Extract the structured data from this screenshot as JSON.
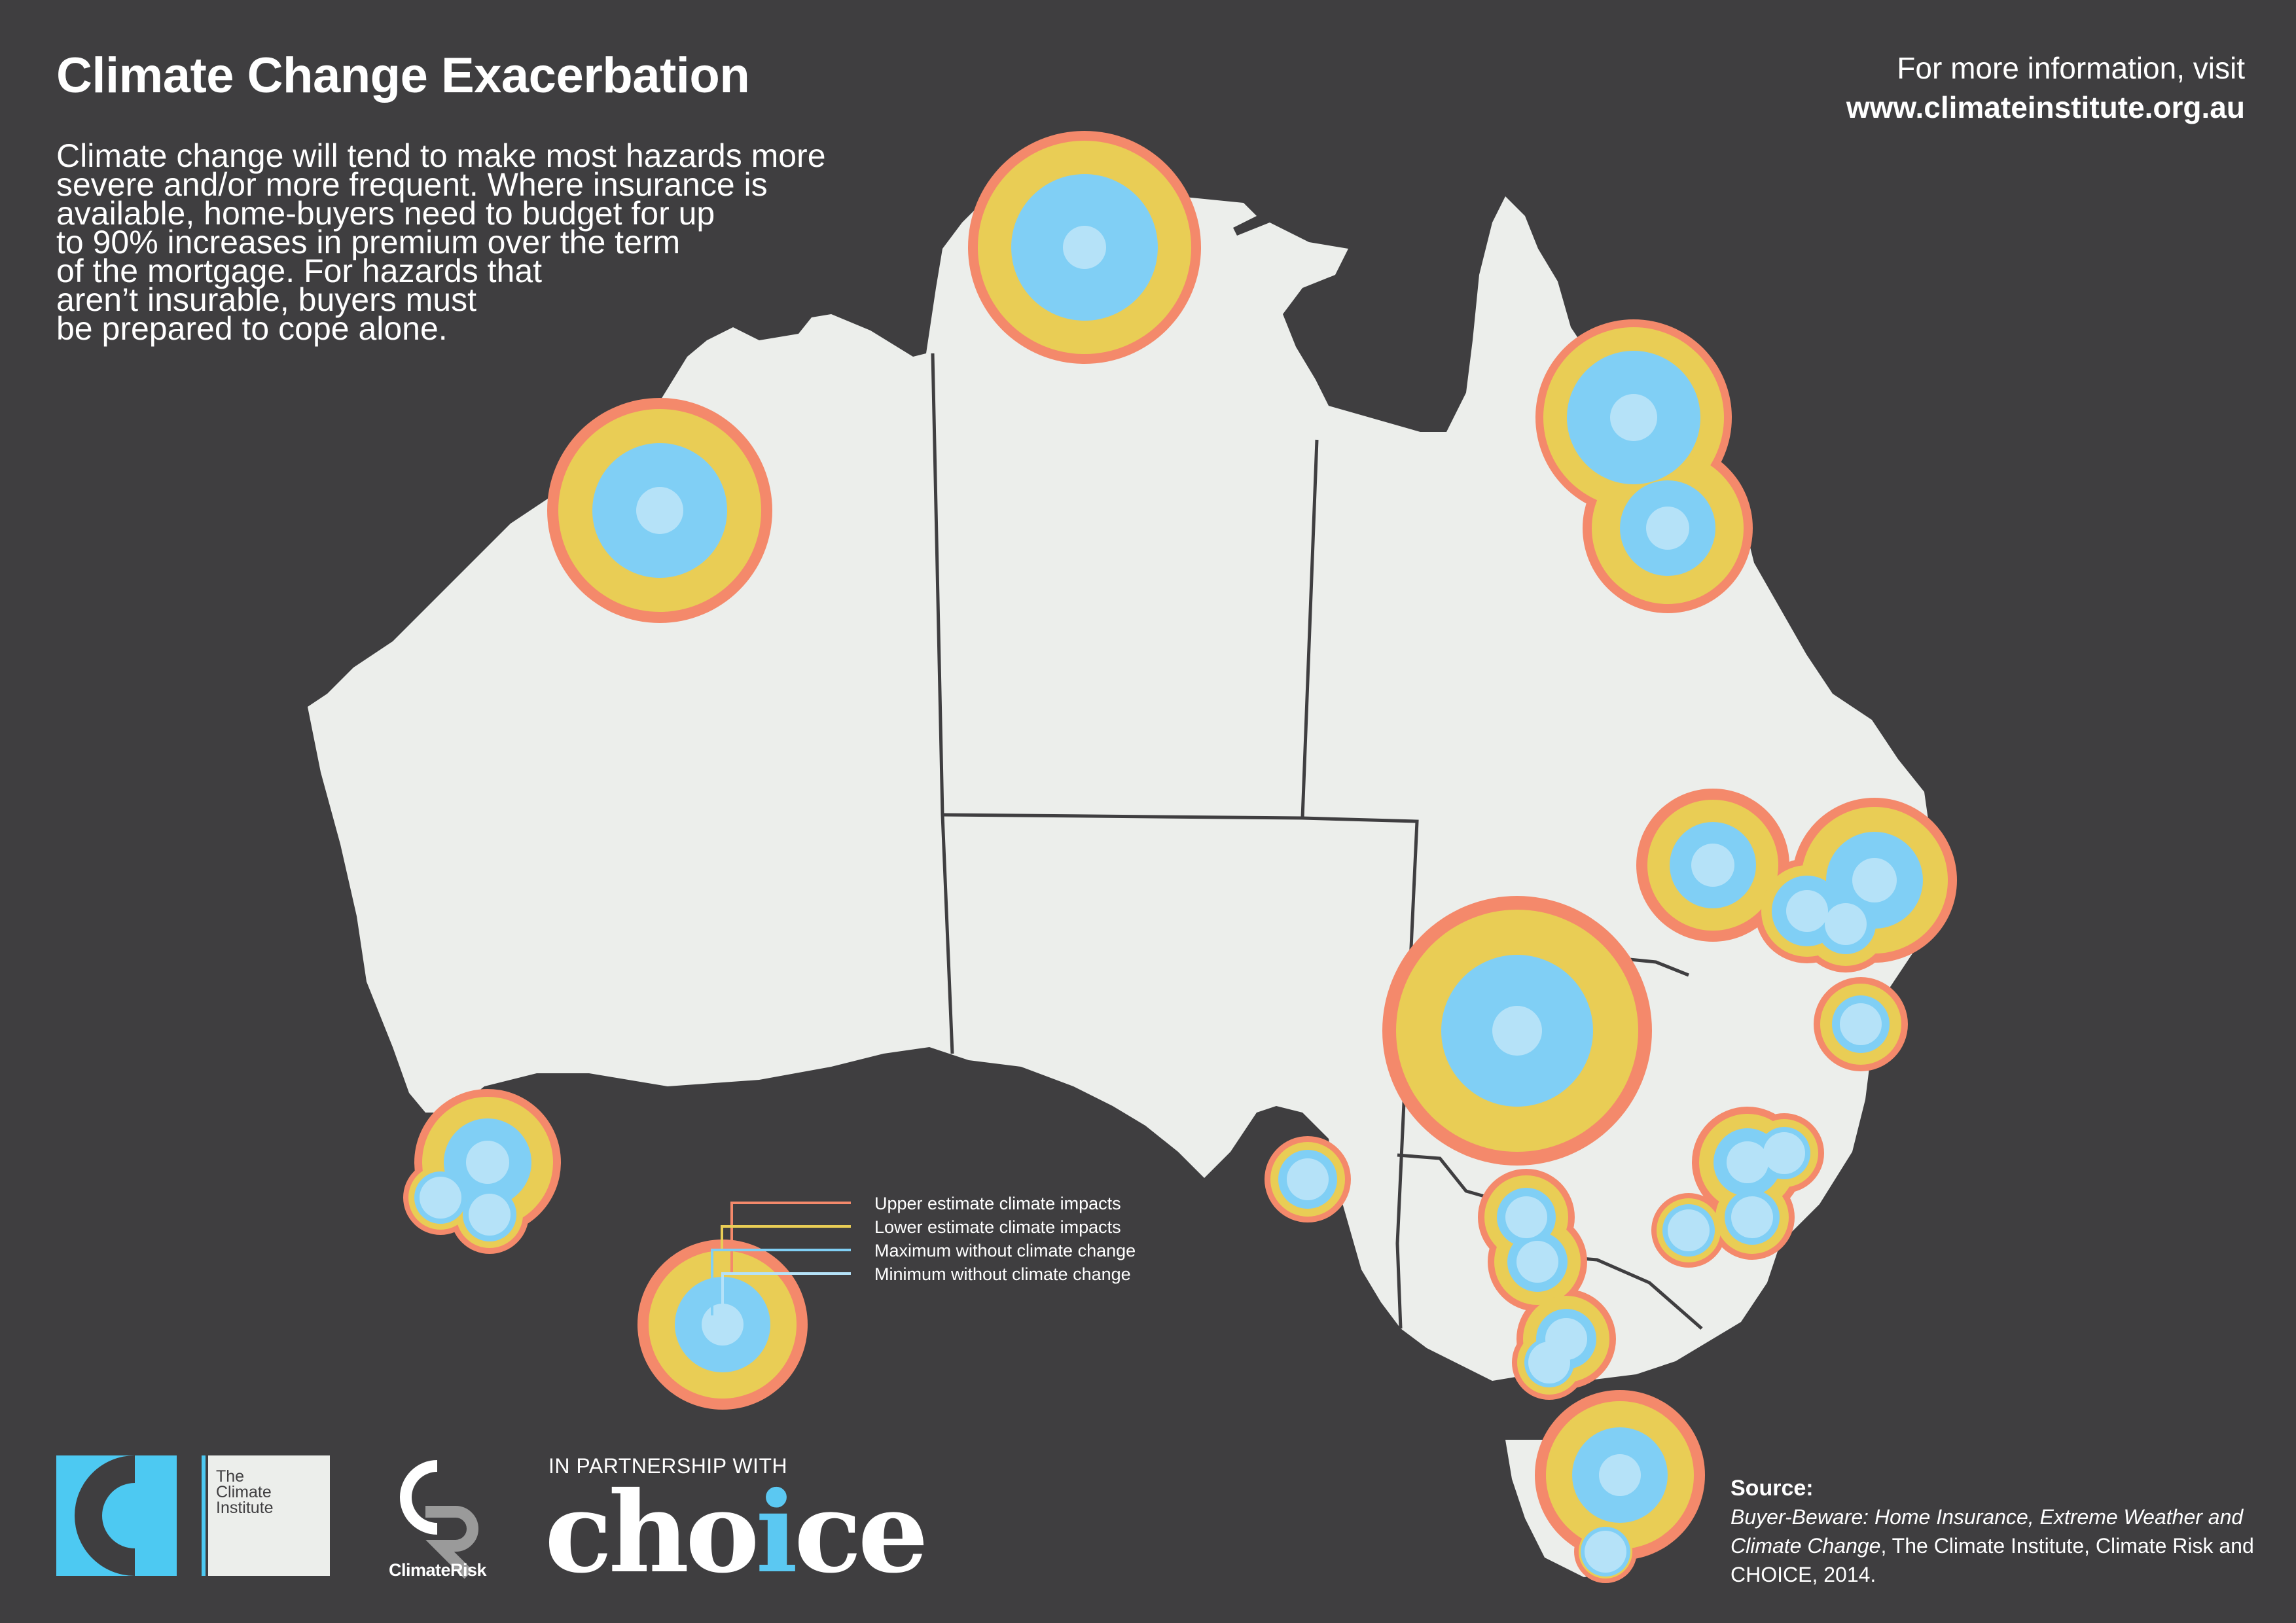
{
  "title": "Climate Change Exacerbation",
  "intro_lines": [
    "Climate change will tend to make most hazards more",
    "severe and/or more frequent.  Where insurance is",
    "available, home-buyers need to budget for up",
    "to 90% increases in premium over the term",
    "of the mortgage.  For hazards that",
    "aren’t insurable, buyers must",
    "be prepared to cope alone."
  ],
  "more_info": {
    "line1": "For more information, visit",
    "url": "www.climateinstitute.org.au"
  },
  "colors": {
    "background": "#3f3e40",
    "land": "#eceeeb",
    "upper": "#f4896b",
    "lower": "#e9cd55",
    "max": "#80cff5",
    "min": "#b5e2f8",
    "border": "#3f3e40"
  },
  "legend": {
    "upper": "Upper estimate climate impacts",
    "lower": "Lower estimate climate impacts",
    "max": "Maximum without climate change",
    "min": "Minimum without climate change"
  },
  "logos": {
    "ci_name_lines": [
      "The",
      "Climate",
      "Institute"
    ],
    "climate_risk": "ClimateRisk",
    "partnership": "IN PARTNERSHIP WITH",
    "choice_pre": "cho",
    "choice_i": "i",
    "choice_post": "ce"
  },
  "source": {
    "label": "Source:",
    "title": "Buyer-Beware: Home Insurance, Extreme Weather and Climate Change",
    "rest": ", The Climate Institute, Climate Risk and CHOICE, 2014."
  }
}
